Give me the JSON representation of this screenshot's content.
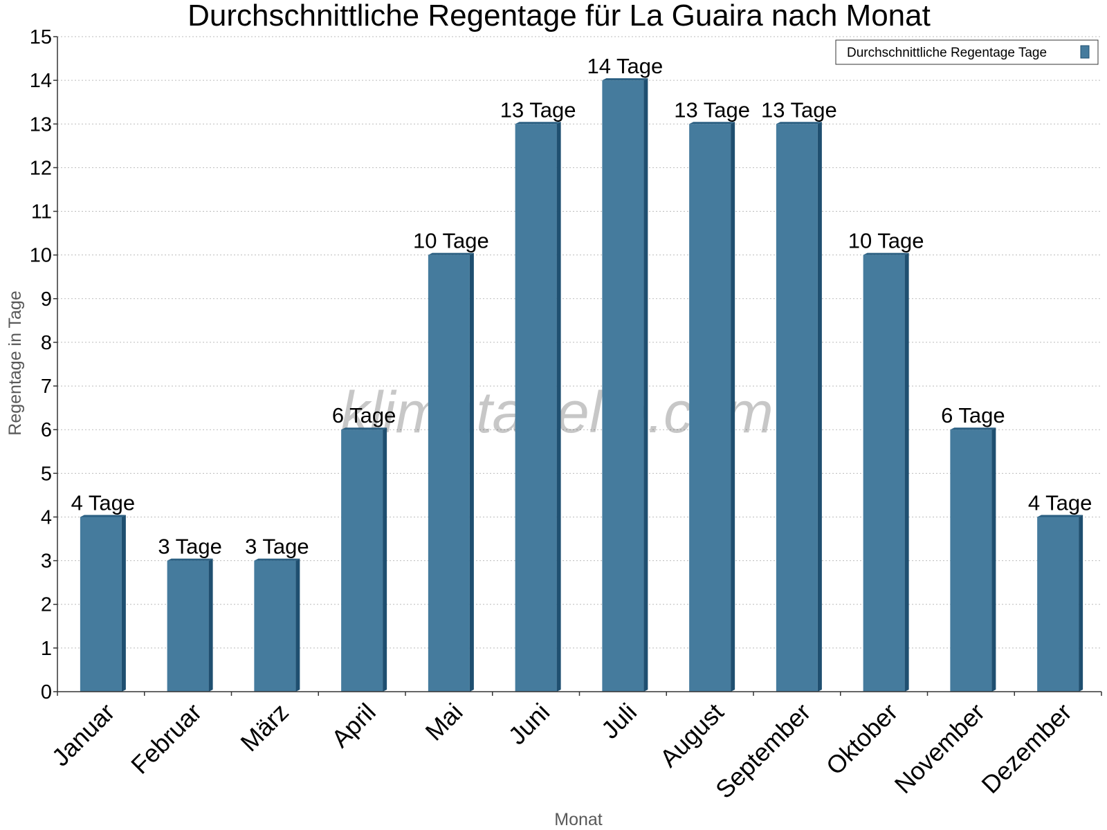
{
  "chart_data": {
    "type": "bar",
    "title": "Durchschnittliche Regentage für La Guaira nach Monat",
    "xlabel": "Monat",
    "ylabel": "Regentage in Tage",
    "categories": [
      "Januar",
      "Februar",
      "März",
      "April",
      "Mai",
      "Juni",
      "Juli",
      "August",
      "September",
      "Oktober",
      "November",
      "Dezember"
    ],
    "series": [
      {
        "name": "Durchschnittliche Regentage Tage",
        "values": [
          4,
          3,
          3,
          6,
          10,
          13,
          14,
          13,
          13,
          10,
          6,
          4
        ],
        "data_labels": [
          "4 Tage",
          "3 Tage",
          "3 Tage",
          "6 Tage",
          "10 Tage",
          "13 Tage",
          "14 Tage",
          "13 Tage",
          "13 Tage",
          "10 Tage",
          "6 Tage",
          "4 Tage"
        ]
      }
    ],
    "ylim": [
      0,
      15
    ],
    "y_ticks": [
      0,
      1,
      2,
      3,
      4,
      5,
      6,
      7,
      8,
      9,
      10,
      11,
      12,
      13,
      14,
      15
    ],
    "grid": true,
    "legend_position": "top-right",
    "colors": {
      "bar": "#457b9d",
      "bar_side": "#1f4f70",
      "bar_top": "#2a5f82"
    },
    "watermark": "klimatabelle.com"
  }
}
